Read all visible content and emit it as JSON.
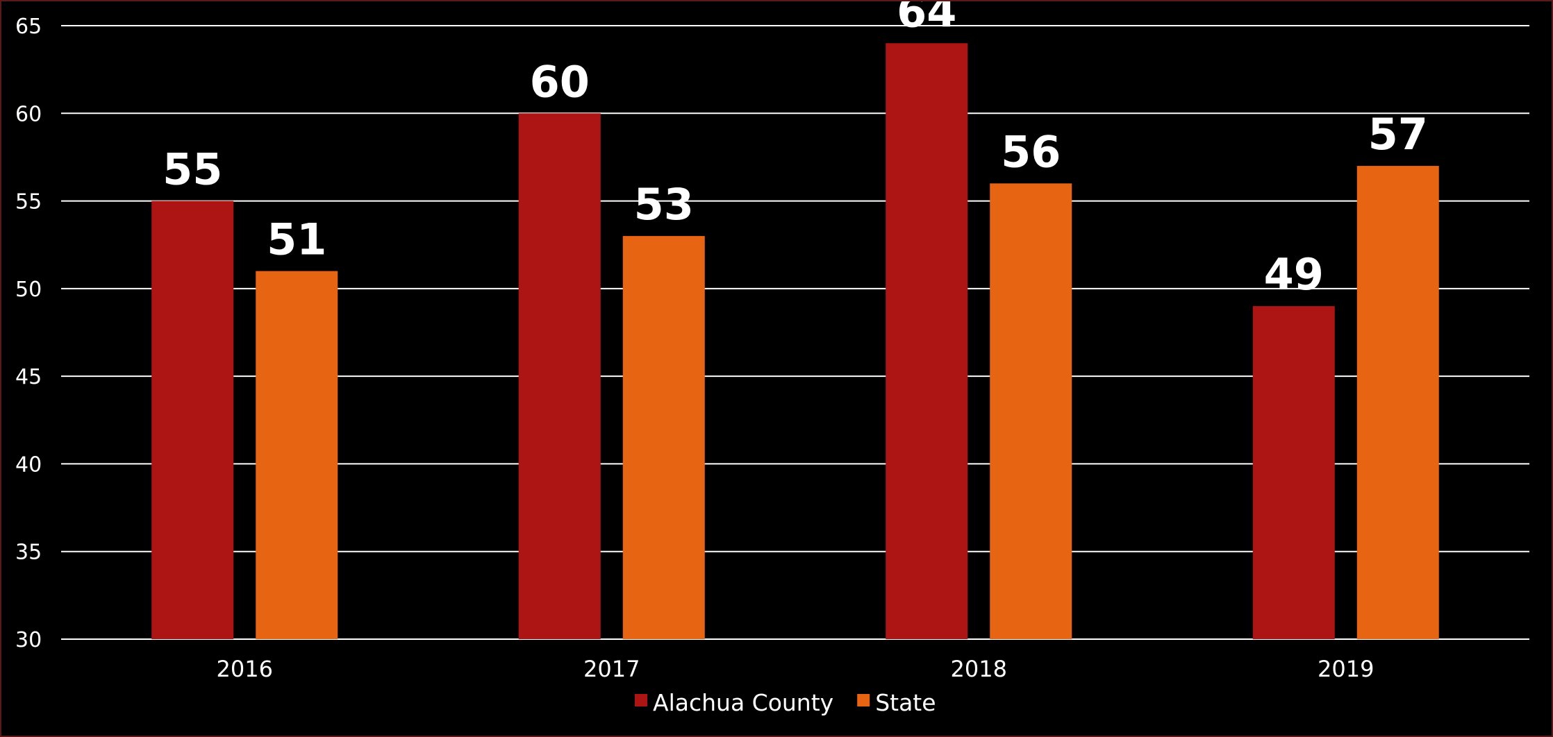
{
  "chart_data": {
    "type": "bar",
    "title": "",
    "xlabel": "",
    "ylabel": "",
    "categories": [
      "2016",
      "2017",
      "2018",
      "2019"
    ],
    "series": [
      {
        "name": "Alachua County",
        "values": [
          55,
          60,
          64,
          49
        ],
        "color": "#ad1515"
      },
      {
        "name": "State",
        "values": [
          51,
          53,
          56,
          57
        ],
        "color": "#e76413"
      }
    ],
    "ylim": [
      30,
      65
    ],
    "yticks": [
      30,
      35,
      40,
      45,
      50,
      55,
      60,
      65
    ],
    "grid": true,
    "legend_position": "bottom-center",
    "data_labels": true
  },
  "colors": {
    "background": "#000000",
    "gridline": "#ffffff",
    "text": "#ffffff"
  }
}
